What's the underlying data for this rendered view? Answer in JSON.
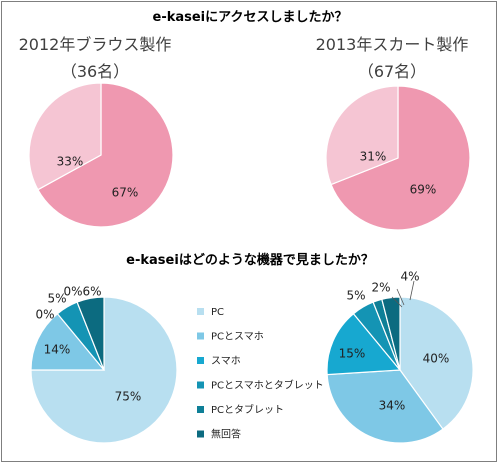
{
  "chart_data": [
    {
      "type": "pie",
      "group_title": "e-kaseiにアクセスしましたか？",
      "title": "2012年ブラウス製作",
      "subtitle": "（36名）",
      "slices": [
        {
          "label": "",
          "value": 67,
          "display": "67%",
          "color": "#ef98b0"
        },
        {
          "label": "",
          "value": 33,
          "display": "33%",
          "color": "#f5c5d3"
        }
      ]
    },
    {
      "type": "pie",
      "title": "2013年スカート製作",
      "subtitle": "（67名）",
      "slices": [
        {
          "label": "",
          "value": 69,
          "display": "69%",
          "color": "#ef98b0"
        },
        {
          "label": "",
          "value": 31,
          "display": "31%",
          "color": "#f5c5d3"
        }
      ]
    },
    {
      "type": "pie",
      "group_title": "e-kaseiはどのような機器で見ましたか？",
      "title": "",
      "slices": [
        {
          "label": "PC",
          "value": 75,
          "display": "75%",
          "color": "#b8dff0"
        },
        {
          "label": "PCとスマホ",
          "value": 14,
          "display": "14%",
          "color": "#7ec8e6"
        },
        {
          "label": "スマホ",
          "value": 0,
          "display": "0%",
          "color": "#17a8d0"
        },
        {
          "label": "PCとスマホとタブレット",
          "value": 5,
          "display": "5%",
          "color": "#1494b4"
        },
        {
          "label": "PCとタブレット",
          "value": 0,
          "display": "0%",
          "color": "#0e7f97"
        },
        {
          "label": "無回答",
          "value": 6,
          "display": "6%",
          "color": "#0c6b80"
        }
      ]
    },
    {
      "type": "pie",
      "title": "",
      "slices": [
        {
          "label": "PC",
          "value": 40,
          "display": "40%",
          "color": "#b8dff0"
        },
        {
          "label": "PCとスマホ",
          "value": 34,
          "display": "34%",
          "color": "#7ec8e6"
        },
        {
          "label": "スマホ",
          "value": 15,
          "display": "15%",
          "color": "#17a8d0"
        },
        {
          "label": "PCとスマホとタブレット",
          "value": 5,
          "display": "5%",
          "color": "#1494b4"
        },
        {
          "label": "PCとタブレット",
          "value": 2,
          "display": "2%",
          "color": "#0e7f97"
        },
        {
          "label": "無回答",
          "value": 4,
          "display": "4%",
          "color": "#0c6b80"
        }
      ]
    }
  ],
  "legend": {
    "placement": "center",
    "items": [
      {
        "label": "PC",
        "color": "#b8dff0"
      },
      {
        "label": "PCとスマホ",
        "color": "#7ec8e6"
      },
      {
        "label": "スマホ",
        "color": "#17a8d0"
      },
      {
        "label": "PCとスマホとタブレット",
        "color": "#1494b4"
      },
      {
        "label": "PCとタブレット",
        "color": "#0e7f97"
      },
      {
        "label": "無回答",
        "color": "#0c6b80"
      }
    ]
  }
}
